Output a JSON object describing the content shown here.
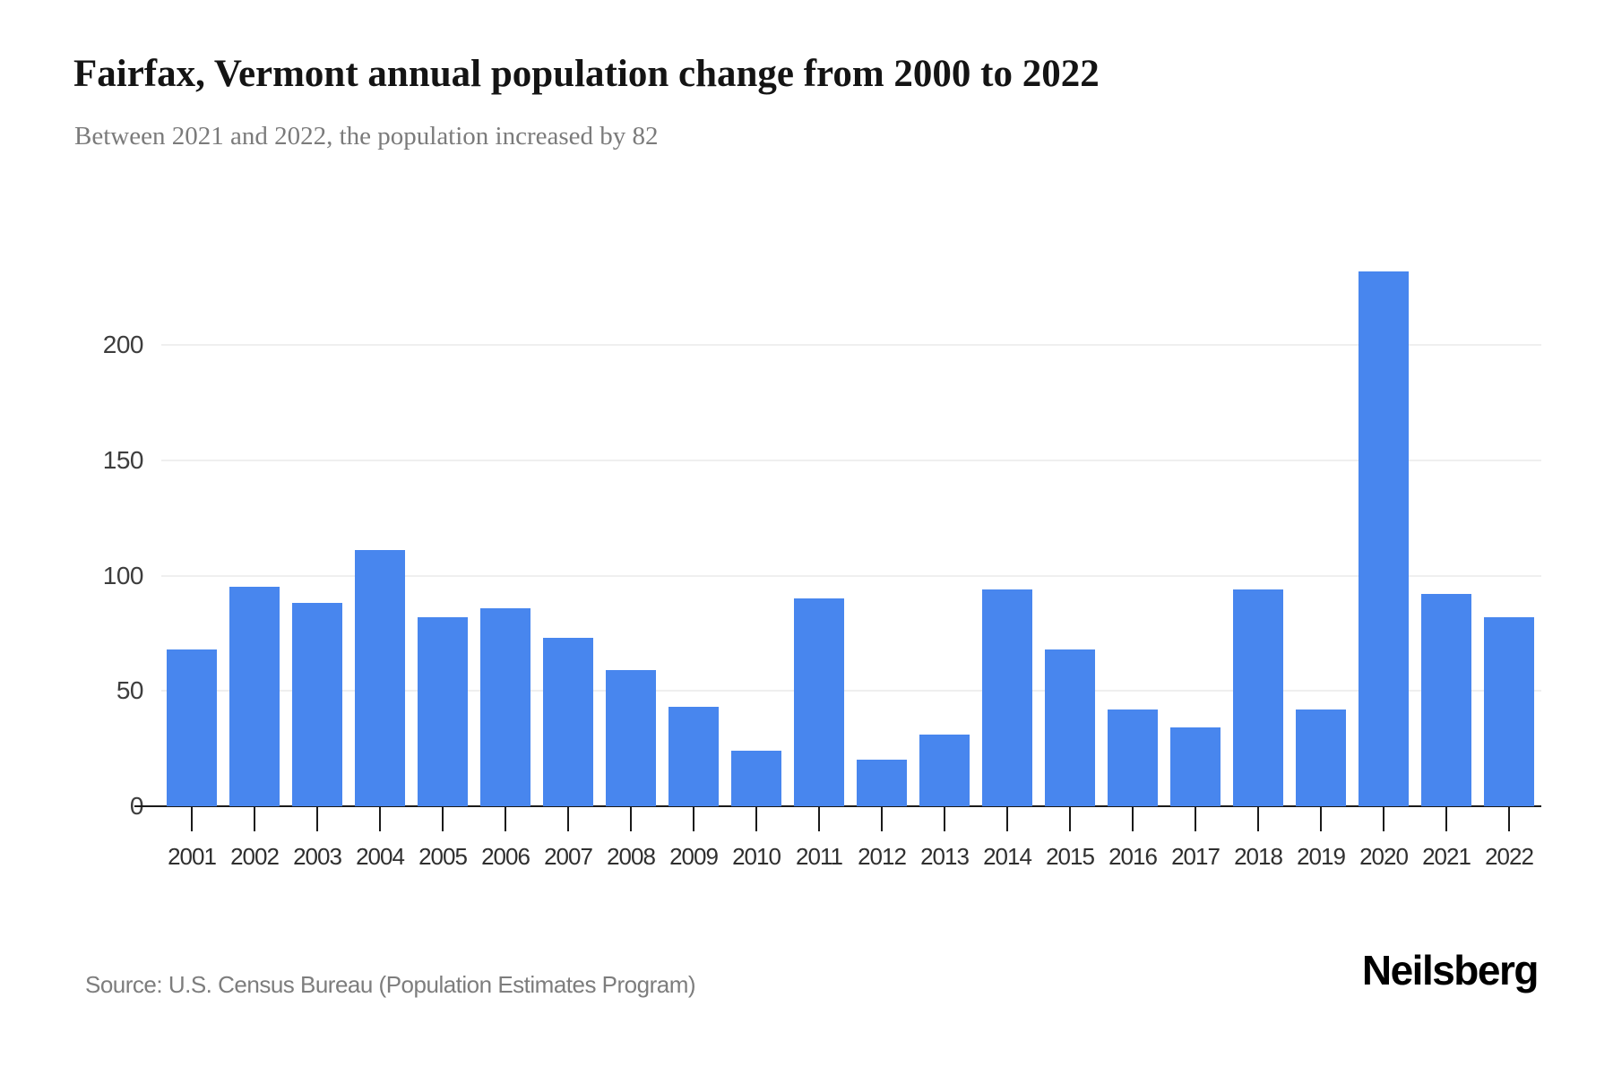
{
  "header": {
    "title": "Fairfax, Vermont annual population change from 2000 to 2022",
    "subtitle": "Between 2021 and 2022, the population increased by 82"
  },
  "footer": {
    "source": "Source: U.S. Census Bureau (Population Estimates Program)",
    "brand": "Neilsberg"
  },
  "chart_data": {
    "type": "bar",
    "title": "Fairfax, Vermont annual population change from 2000 to 2022",
    "subtitle": "Between 2021 and 2022, the population increased by 82",
    "categories": [
      "2001",
      "2002",
      "2003",
      "2004",
      "2005",
      "2006",
      "2007",
      "2008",
      "2009",
      "2010",
      "2011",
      "2012",
      "2013",
      "2014",
      "2015",
      "2016",
      "2017",
      "2018",
      "2019",
      "2020",
      "2021",
      "2022"
    ],
    "values": [
      68,
      95,
      88,
      111,
      82,
      86,
      73,
      59,
      43,
      24,
      90,
      20,
      31,
      94,
      68,
      42,
      34,
      94,
      42,
      232,
      92,
      82
    ],
    "xlabel": "",
    "ylabel": "",
    "ylim": [
      0,
      256
    ],
    "yticks": [
      0,
      50,
      100,
      150,
      200
    ],
    "grid": true,
    "legend": false,
    "bar_color": "#4886EE",
    "grid_color": "#efefef",
    "axis_color": "#1a1a1a"
  }
}
